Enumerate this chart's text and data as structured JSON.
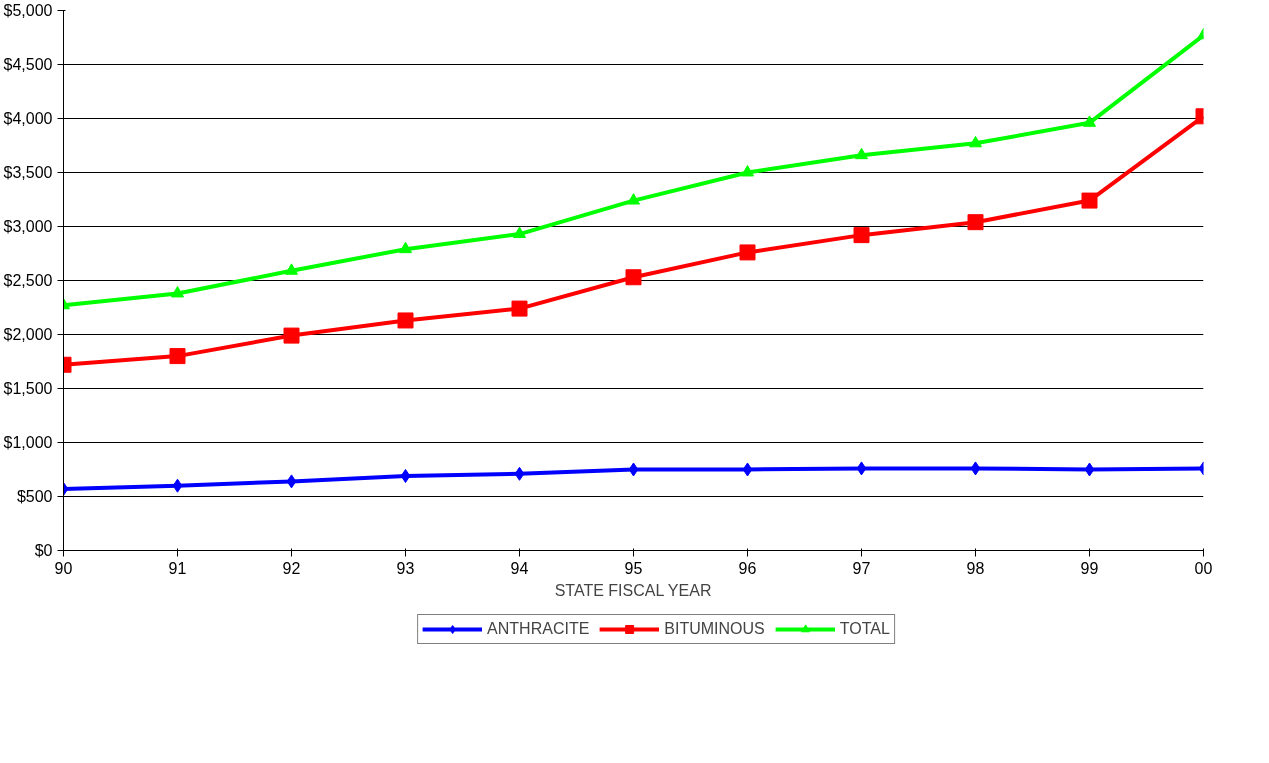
{
  "chart_data": {
    "type": "line",
    "xlabel": "STATE FISCAL YEAR",
    "categories": [
      "90",
      "91",
      "92",
      "93",
      "94",
      "95",
      "96",
      "97",
      "98",
      "99",
      "00"
    ],
    "series": [
      {
        "name": "ANTHRACITE",
        "color": "#0000ff",
        "marker": "diamond",
        "values": [
          570,
          600,
          640,
          690,
          710,
          750,
          750,
          760,
          760,
          750,
          760
        ]
      },
      {
        "name": "BITUMINOUS",
        "color": "#ff0000",
        "marker": "square",
        "values": [
          1720,
          1800,
          1990,
          2130,
          2240,
          2530,
          2760,
          2920,
          3040,
          3240,
          4020
        ]
      },
      {
        "name": "TOTAL",
        "color": "#00ff00",
        "marker": "triangle",
        "values": [
          2270,
          2380,
          2590,
          2790,
          2930,
          3240,
          3500,
          3660,
          3770,
          3960,
          4770
        ]
      }
    ],
    "ylim": [
      0,
      5000
    ],
    "yticks": [
      {
        "value": 0,
        "label": "$0"
      },
      {
        "value": 500,
        "label": "$500"
      },
      {
        "value": 1000,
        "label": "$1,000"
      },
      {
        "value": 1500,
        "label": "$1,500"
      },
      {
        "value": 2000,
        "label": "$2,000"
      },
      {
        "value": 2500,
        "label": "$2,500"
      },
      {
        "value": 3000,
        "label": "$3,000"
      },
      {
        "value": 3500,
        "label": "$3,500"
      },
      {
        "value": 4000,
        "label": "$4,000"
      },
      {
        "value": 4500,
        "label": "$4,500"
      },
      {
        "value": 5000,
        "label": "$5,000"
      }
    ],
    "grid": "y",
    "legend": "bottom",
    "line_style": "solid"
  }
}
